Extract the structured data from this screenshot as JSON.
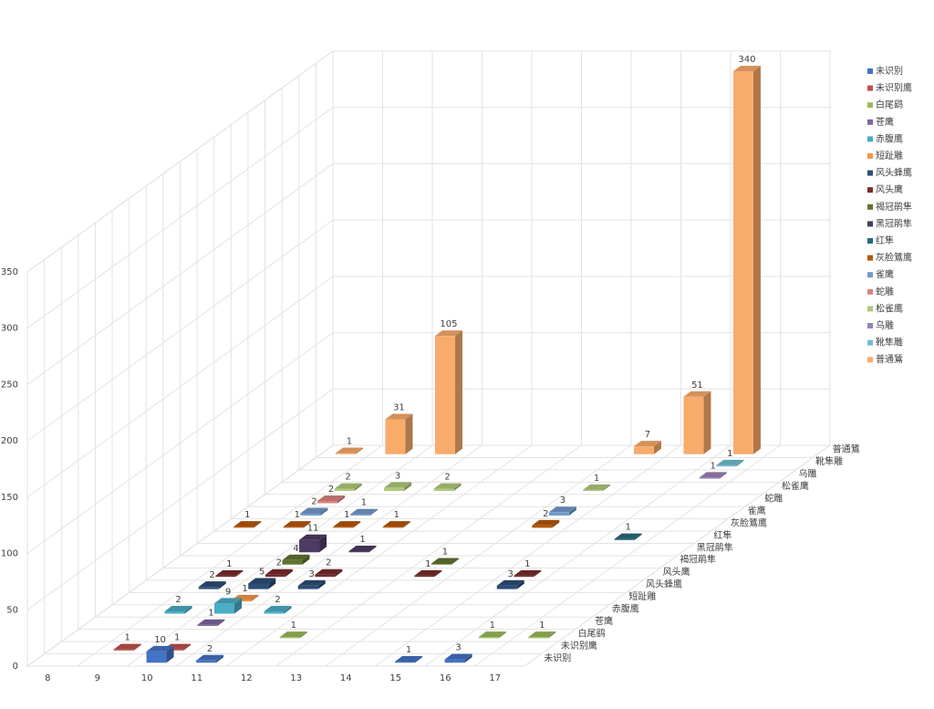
{
  "chart_data": {
    "type": "bar3d",
    "categories": [
      8,
      9,
      10,
      11,
      12,
      13,
      14,
      15,
      16,
      17
    ],
    "zlim": [
      0,
      350
    ],
    "zticks": [
      0,
      50,
      100,
      150,
      200,
      250,
      300,
      350
    ],
    "grid": true,
    "legend": "right",
    "series": [
      {
        "name": "未识别",
        "color": "#4472c4",
        "values": [
          null,
          null,
          10,
          2,
          null,
          null,
          null,
          1,
          3,
          null
        ]
      },
      {
        "name": "未识别鹰",
        "color": "#c0504d",
        "values": [
          null,
          1,
          1,
          null,
          null,
          null,
          null,
          null,
          null,
          null
        ]
      },
      {
        "name": "白尾鹞",
        "color": "#9bbb59",
        "values": [
          null,
          null,
          null,
          null,
          1,
          null,
          null,
          null,
          1,
          1
        ]
      },
      {
        "name": "苍鹰",
        "color": "#8064a2",
        "values": [
          null,
          null,
          1,
          null,
          null,
          null,
          null,
          null,
          null,
          null
        ]
      },
      {
        "name": "赤腹鹰",
        "color": "#4bacc6",
        "values": [
          null,
          2,
          9,
          2,
          null,
          null,
          null,
          null,
          null,
          null
        ]
      },
      {
        "name": "短趾雕",
        "color": "#f79646",
        "values": [
          null,
          null,
          1,
          null,
          null,
          null,
          null,
          null,
          null,
          null
        ]
      },
      {
        "name": "风头蜂鹰",
        "color": "#2c4d75",
        "values": [
          null,
          2,
          5,
          3,
          null,
          null,
          null,
          3,
          null,
          null
        ]
      },
      {
        "name": "风头鹰",
        "color": "#772c2a",
        "values": [
          null,
          1,
          2,
          2,
          null,
          1,
          null,
          1,
          null,
          null
        ]
      },
      {
        "name": "褐冠鹃隼",
        "color": "#5f7530",
        "values": [
          null,
          null,
          4,
          null,
          null,
          1,
          null,
          null,
          null,
          null
        ]
      },
      {
        "name": "黑冠鹃隼",
        "color": "#4d3b62",
        "values": [
          null,
          null,
          11,
          1,
          null,
          null,
          null,
          null,
          null,
          null
        ]
      },
      {
        "name": "红隼",
        "color": "#276a7c",
        "values": [
          null,
          null,
          null,
          null,
          null,
          null,
          null,
          null,
          1,
          null
        ]
      },
      {
        "name": "灰脸鵟鹰",
        "color": "#b65708",
        "values": [
          1,
          1,
          1,
          1,
          null,
          null,
          2,
          null,
          null,
          null
        ]
      },
      {
        "name": "雀鹰",
        "color": "#729aca",
        "values": [
          null,
          2,
          1,
          null,
          null,
          null,
          3,
          null,
          null,
          null
        ]
      },
      {
        "name": "蛇雕",
        "color": "#d9807e",
        "values": [
          null,
          2,
          null,
          null,
          null,
          null,
          null,
          null,
          null,
          null
        ]
      },
      {
        "name": "松雀鹰",
        "color": "#afc97a",
        "values": [
          null,
          2,
          3,
          2,
          null,
          null,
          1,
          null,
          null,
          null
        ]
      },
      {
        "name": "乌雕",
        "color": "#9983b5",
        "values": [
          null,
          null,
          null,
          null,
          null,
          null,
          null,
          null,
          1,
          null
        ]
      },
      {
        "name": "靴隼雕",
        "color": "#6fbdd3",
        "values": [
          null,
          null,
          null,
          null,
          null,
          null,
          null,
          null,
          1,
          null
        ]
      },
      {
        "name": "普通鵟",
        "color": "#f9ab6b",
        "values": [
          1,
          31,
          105,
          null,
          null,
          null,
          7,
          51,
          340,
          null
        ]
      }
    ]
  }
}
